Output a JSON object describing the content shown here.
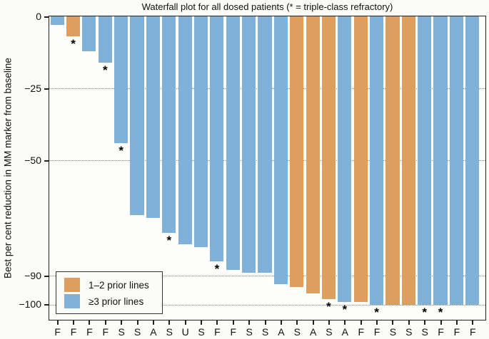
{
  "chart_data": {
    "type": "bar",
    "title": "Waterfall plot for all dosed patients (* = triple-class refractory)",
    "ylabel": "Best per cent reduction in MM marker from baseline",
    "ylim": [
      -105,
      0
    ],
    "grid": "horizontal-dotted",
    "legend_position": "bottom-left-inside",
    "star_meaning": "triple-class refractory",
    "yticks": [
      {
        "label": "0",
        "value": 0
      },
      {
        "label": "−25",
        "value": -25
      },
      {
        "label": "−50",
        "value": -50
      },
      {
        "label": "−90",
        "value": -90
      },
      {
        "label": "−100",
        "value": -100
      }
    ],
    "gridlines": [
      -25,
      -50,
      -90,
      -100
    ],
    "legend": [
      {
        "key": "lines_1_2",
        "label": "1–2 prior lines",
        "color": "#de9f5e"
      },
      {
        "key": "lines_ge3",
        "label": "≥3 prior lines",
        "color": "#7fb1d9"
      }
    ],
    "bars": [
      {
        "x_label": "F",
        "value": -3,
        "group": "lines_ge3",
        "star": false
      },
      {
        "x_label": "F",
        "value": -7,
        "group": "lines_1_2",
        "star": true
      },
      {
        "x_label": "F",
        "value": -12,
        "group": "lines_ge3",
        "star": false
      },
      {
        "x_label": "F",
        "value": -16,
        "group": "lines_ge3",
        "star": true
      },
      {
        "x_label": "S",
        "value": -44,
        "group": "lines_ge3",
        "star": true
      },
      {
        "x_label": "S",
        "value": -69,
        "group": "lines_ge3",
        "star": false
      },
      {
        "x_label": "A",
        "value": -70,
        "group": "lines_ge3",
        "star": false
      },
      {
        "x_label": "S",
        "value": -75,
        "group": "lines_ge3",
        "star": true
      },
      {
        "x_label": "U",
        "value": -79,
        "group": "lines_ge3",
        "star": false
      },
      {
        "x_label": "S",
        "value": -80,
        "group": "lines_ge3",
        "star": false
      },
      {
        "x_label": "F",
        "value": -85,
        "group": "lines_ge3",
        "star": true
      },
      {
        "x_label": "F",
        "value": -88,
        "group": "lines_ge3",
        "star": false
      },
      {
        "x_label": "S",
        "value": -89,
        "group": "lines_ge3",
        "star": false
      },
      {
        "x_label": "S",
        "value": -89,
        "group": "lines_ge3",
        "star": false
      },
      {
        "x_label": "A",
        "value": -93,
        "group": "lines_ge3",
        "star": false
      },
      {
        "x_label": "S",
        "value": -94,
        "group": "lines_1_2",
        "star": false
      },
      {
        "x_label": "A",
        "value": -96,
        "group": "lines_1_2",
        "star": false
      },
      {
        "x_label": "S",
        "value": -98,
        "group": "lines_1_2",
        "star": true
      },
      {
        "x_label": "A",
        "value": -99,
        "group": "lines_ge3",
        "star": true
      },
      {
        "x_label": "F",
        "value": -99,
        "group": "lines_1_2",
        "star": false
      },
      {
        "x_label": "F",
        "value": -100,
        "group": "lines_ge3",
        "star": true
      },
      {
        "x_label": "S",
        "value": -100,
        "group": "lines_1_2",
        "star": false
      },
      {
        "x_label": "S",
        "value": -100,
        "group": "lines_1_2",
        "star": false
      },
      {
        "x_label": "S",
        "value": -100,
        "group": "lines_ge3",
        "star": true
      },
      {
        "x_label": "F",
        "value": -100,
        "group": "lines_ge3",
        "star": true
      },
      {
        "x_label": "F",
        "value": -100,
        "group": "lines_ge3",
        "star": false
      },
      {
        "x_label": "F",
        "value": -100,
        "group": "lines_ge3",
        "star": false
      }
    ]
  }
}
